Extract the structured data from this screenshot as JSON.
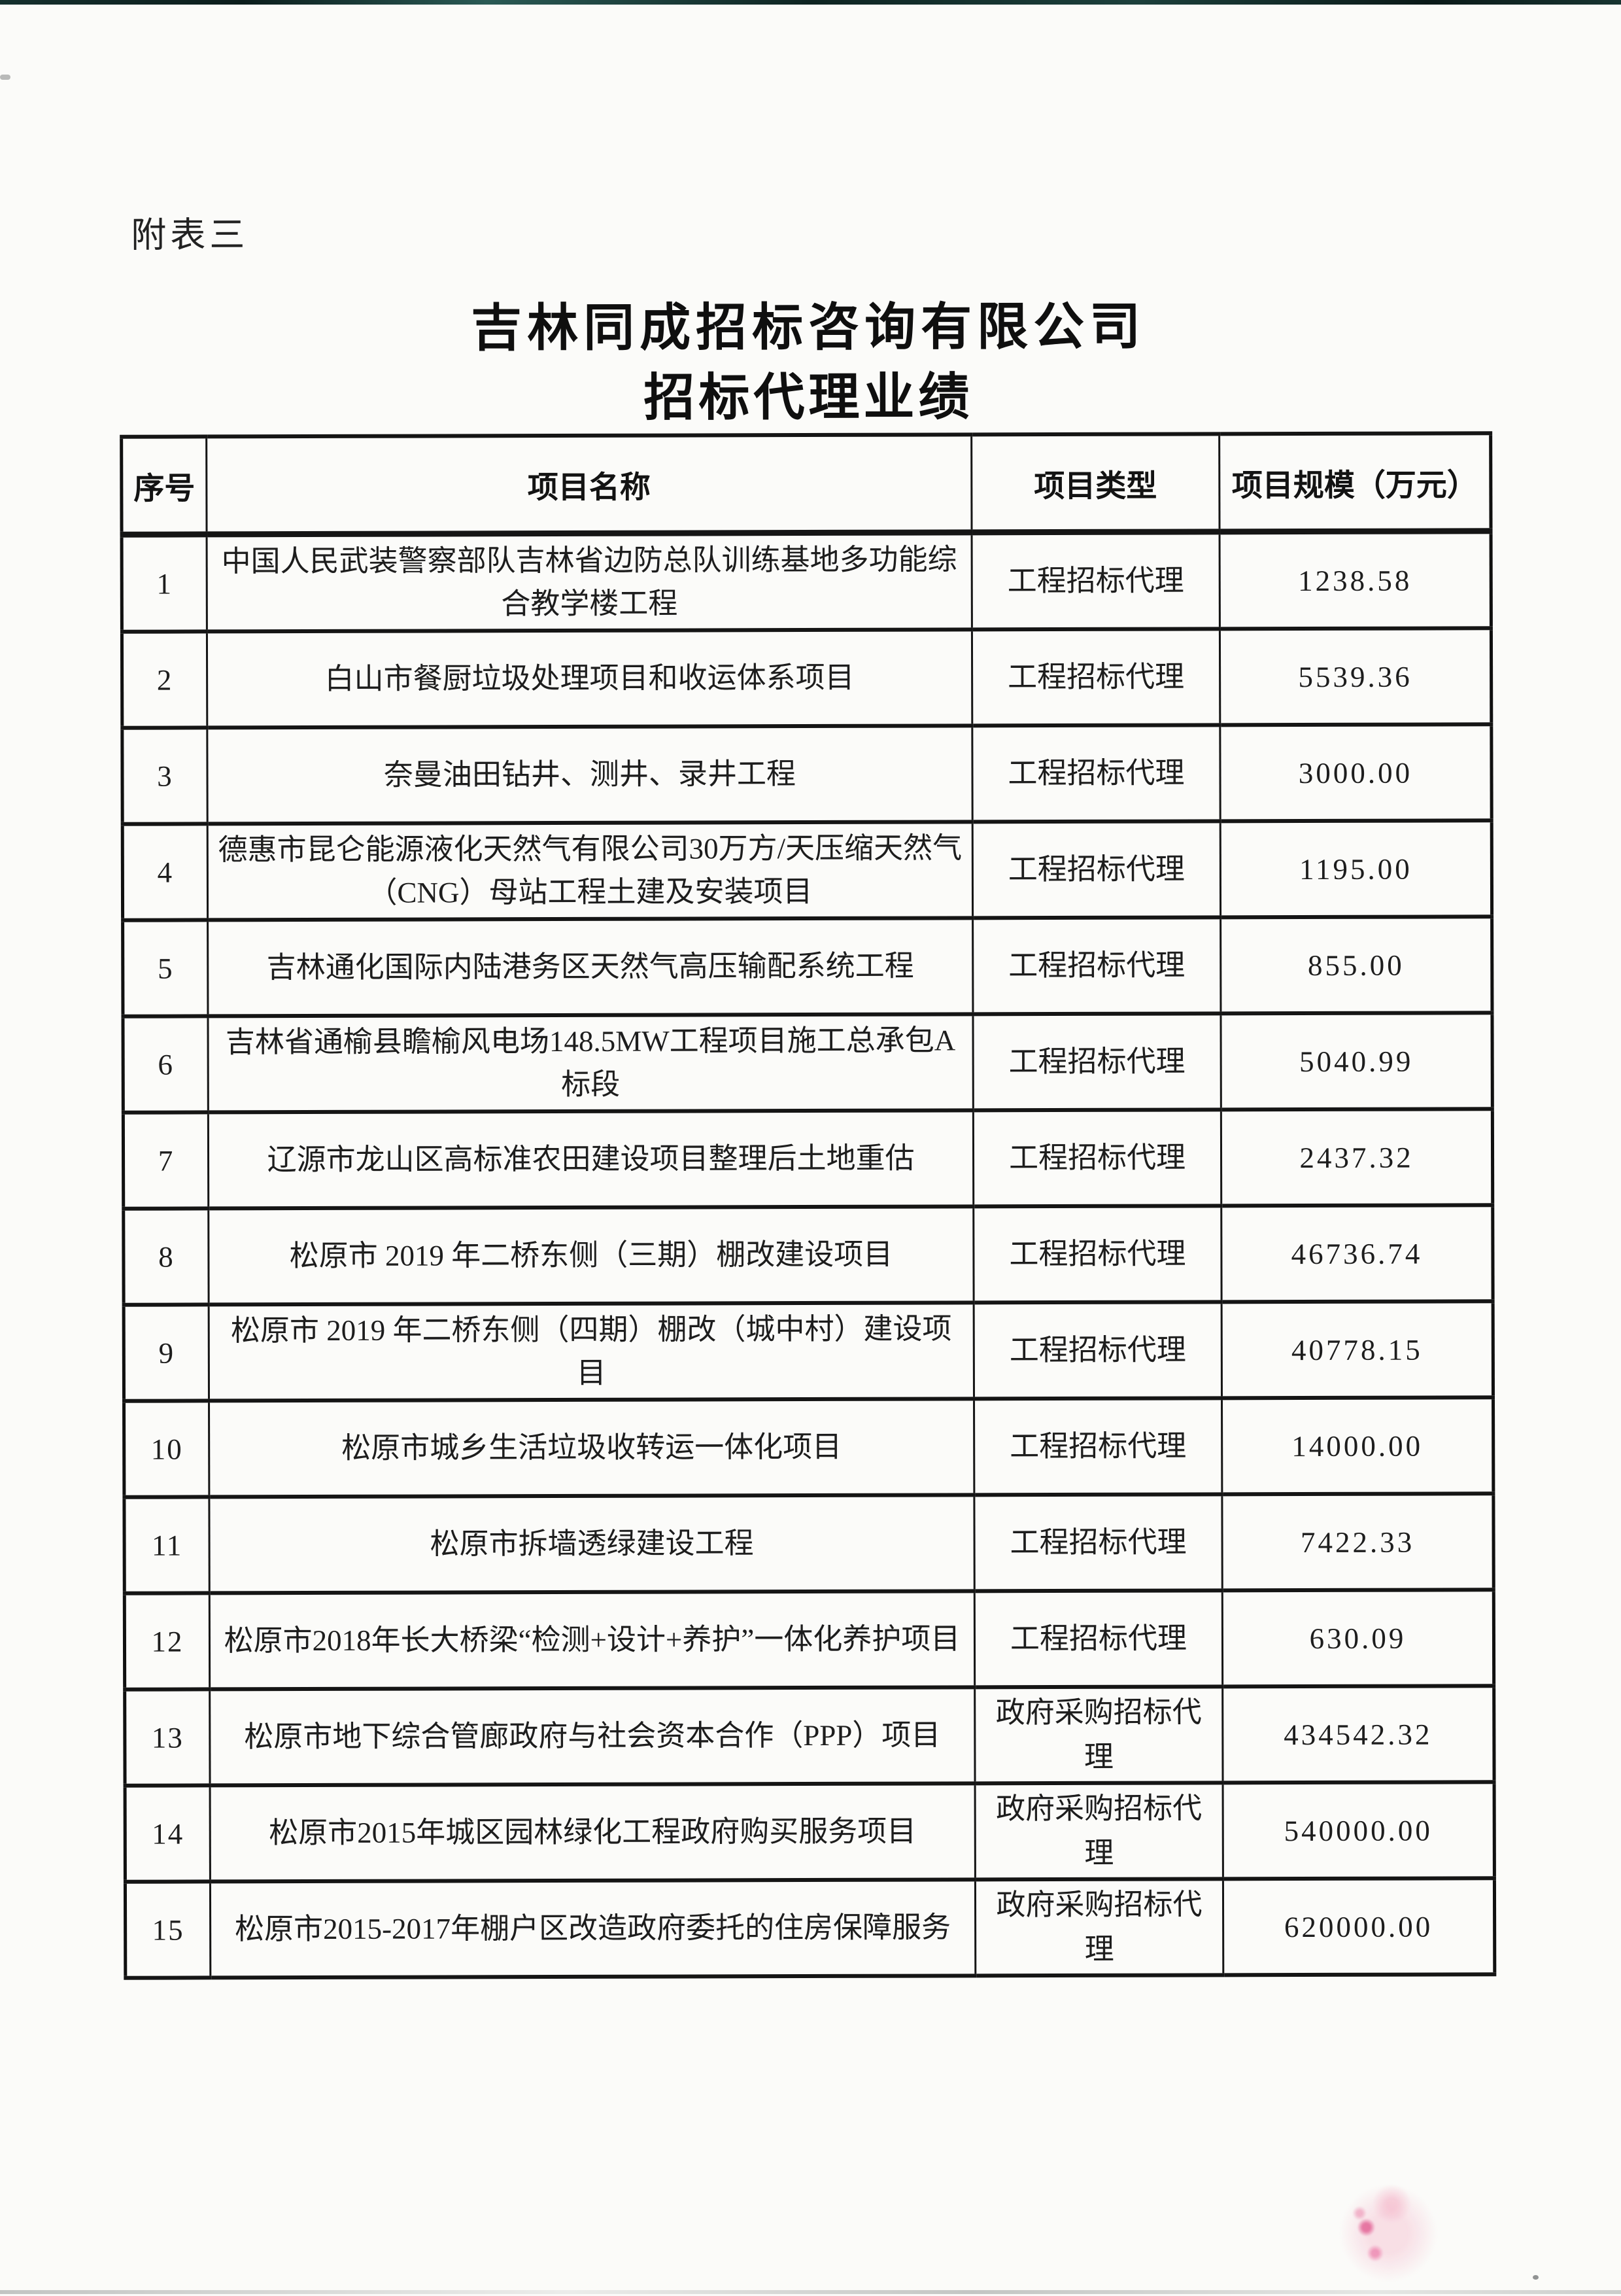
{
  "page": {
    "appendix_label": "附表三",
    "title": "吉林同成招标咨询有限公司",
    "subtitle": "招标代理业绩"
  },
  "table": {
    "headers": [
      "序号",
      "项目名称",
      "项目类型",
      "项目规模（万元）"
    ],
    "rows": [
      {
        "no": "1",
        "name": "中国人民武装警察部队吉林省边防总队训练基地多功能综合教学楼工程",
        "type": "工程招标代理",
        "scale": "1238.58"
      },
      {
        "no": "2",
        "name": "白山市餐厨垃圾处理项目和收运体系项目",
        "type": "工程招标代理",
        "scale": "5539.36"
      },
      {
        "no": "3",
        "name": "奈曼油田钻井、测井、录井工程",
        "type": "工程招标代理",
        "scale": "3000.00"
      },
      {
        "no": "4",
        "name": "德惠市昆仑能源液化天然气有限公司30万方/天压缩天然气（CNG）母站工程土建及安装项目",
        "type": "工程招标代理",
        "scale": "1195.00"
      },
      {
        "no": "5",
        "name": "吉林通化国际内陆港务区天然气高压输配系统工程",
        "type": "工程招标代理",
        "scale": "855.00"
      },
      {
        "no": "6",
        "name": "吉林省通榆县瞻榆风电场148.5MW工程项目施工总承包A标段",
        "type": "工程招标代理",
        "scale": "5040.99"
      },
      {
        "no": "7",
        "name": "辽源市龙山区高标准农田建设项目整理后土地重估",
        "type": "工程招标代理",
        "scale": "2437.32"
      },
      {
        "no": "8",
        "name": "松原市 2019 年二桥东侧（三期）棚改建设项目",
        "type": "工程招标代理",
        "scale": "46736.74"
      },
      {
        "no": "9",
        "name": "松原市 2019 年二桥东侧（四期）棚改（城中村）建设项目",
        "type": "工程招标代理",
        "scale": "40778.15"
      },
      {
        "no": "10",
        "name": "松原市城乡生活垃圾收转运一体化项目",
        "type": "工程招标代理",
        "scale": "14000.00"
      },
      {
        "no": "11",
        "name": "松原市拆墙透绿建设工程",
        "type": "工程招标代理",
        "scale": "7422.33"
      },
      {
        "no": "12",
        "name": "松原市2018年长大桥梁“检测+设计+养护”一体化养护项目",
        "type": "工程招标代理",
        "scale": "630.09"
      },
      {
        "no": "13",
        "name": "松原市地下综合管廊政府与社会资本合作（PPP）项目",
        "type": "政府采购招标代理",
        "scale": "434542.32"
      },
      {
        "no": "14",
        "name": "松原市2015年城区园林绿化工程政府购买服务项目",
        "type": "政府采购招标代理",
        "scale": "540000.00"
      },
      {
        "no": "15",
        "name": "松原市2015-2017年棚户区改造政府委托的住房保障服务",
        "type": "政府采购招标代理",
        "scale": "620000.00"
      }
    ]
  }
}
